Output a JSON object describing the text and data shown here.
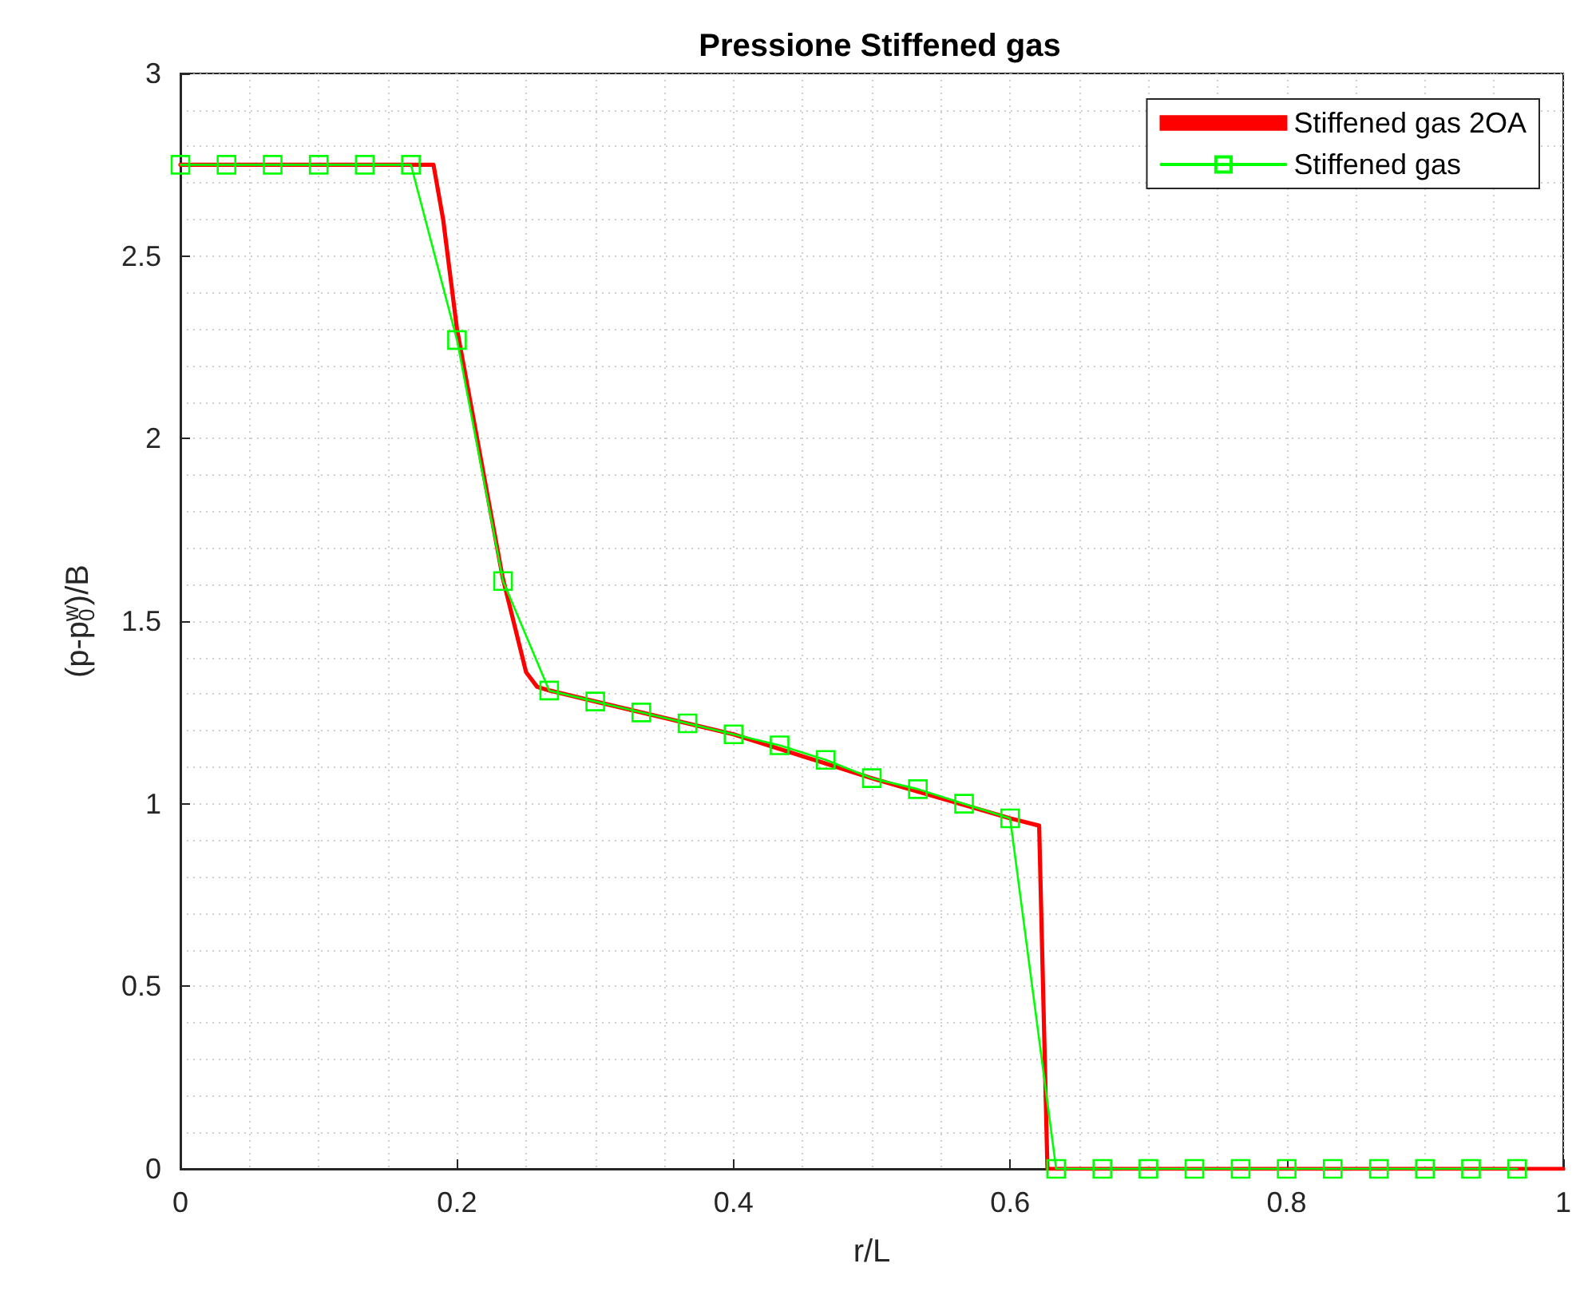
{
  "chart_data": {
    "type": "line",
    "title": "Pressione Stiffened gas",
    "xlabel": "r/L",
    "ylabel": "(p-p$_{0}$$^{w}$)/B",
    "xlim": [
      0,
      1
    ],
    "xticks": [
      0,
      0.2,
      0.4,
      0.6,
      0.8,
      1
    ],
    "ylim": [
      0,
      3
    ],
    "yticks": [
      0,
      0.5,
      1,
      1.5,
      2,
      2.5,
      3
    ],
    "grid": true,
    "legend": "top right",
    "series": [
      {
        "name": "Stiffened gas 2OA",
        "color": "#ff0000",
        "marker": "none",
        "x": [
          0,
          0.183,
          0.19,
          0.2,
          0.233,
          0.25,
          0.258,
          0.267,
          0.3,
          0.4,
          0.5,
          0.6,
          0.621,
          0.627,
          1
        ],
        "values": [
          2.75,
          2.75,
          2.6,
          2.3,
          1.62,
          1.36,
          1.32,
          1.31,
          1.28,
          1.19,
          1.07,
          0.96,
          0.94,
          0,
          0
        ]
      },
      {
        "name": "Stiffened gas",
        "color": "#00ff00",
        "marker": "square",
        "x": [
          0,
          0.0333,
          0.0667,
          0.1,
          0.1333,
          0.1667,
          0.2,
          0.2333,
          0.2667,
          0.3,
          0.3333,
          0.3667,
          0.4,
          0.4333,
          0.4667,
          0.5,
          0.5333,
          0.5667,
          0.6,
          0.6333,
          0.6667,
          0.7,
          0.7333,
          0.7667,
          0.8,
          0.8333,
          0.8667,
          0.9,
          0.9333,
          0.9667
        ],
        "values": [
          2.75,
          2.75,
          2.75,
          2.75,
          2.75,
          2.75,
          2.27,
          1.61,
          1.31,
          1.28,
          1.25,
          1.22,
          1.19,
          1.16,
          1.12,
          1.07,
          1.04,
          1.0,
          0.96,
          0,
          0,
          0,
          0,
          0,
          0,
          0,
          0,
          0,
          0,
          0
        ]
      }
    ]
  }
}
